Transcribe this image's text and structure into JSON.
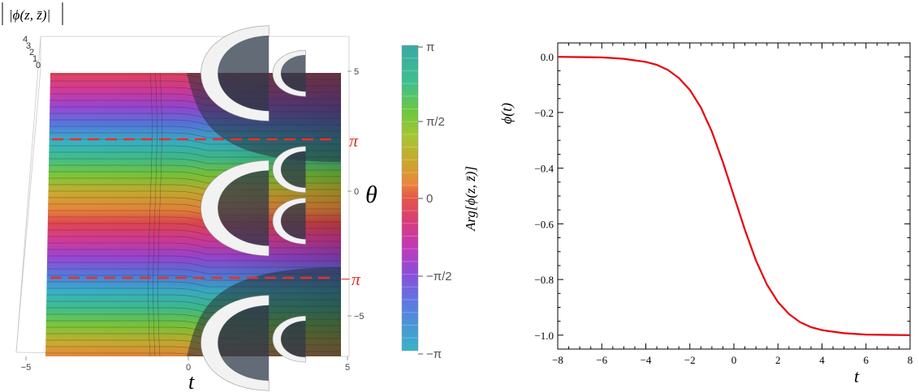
{
  "chart_data": [
    {
      "type": "surface3d",
      "z_label": "|ϕ(z, z̄)|",
      "z_ticks": [
        "4",
        "3",
        "2",
        "1",
        "0"
      ],
      "x_label": "t",
      "x_ticks": [
        "−5",
        "0",
        "5"
      ],
      "x_range": [
        -5,
        5
      ],
      "y_label": "θ",
      "y_ticks": [
        "5",
        "0",
        "−5"
      ],
      "y_range": [
        -7,
        7
      ],
      "reference_lines": [
        {
          "theta": 3.14159,
          "label": "π",
          "color": "#e8302a"
        },
        {
          "theta": -3.14159,
          "label": "−π",
          "color": "#e8302a"
        }
      ],
      "poles": [
        {
          "t": 0,
          "theta": 6.28
        },
        {
          "t": 0,
          "theta": 0
        },
        {
          "t": 0,
          "theta": -6.28
        },
        {
          "t": 2.5,
          "theta": 6.28
        },
        {
          "t": 2.5,
          "theta": 1.8
        },
        {
          "t": 2.5,
          "theta": -0.6
        },
        {
          "t": 2.5,
          "theta": -6.1
        }
      ],
      "colorbar": {
        "label": "Arg[ϕ(z, z̄)]",
        "ticks": [
          "π",
          "π/2",
          "0",
          "−π/2",
          "−π"
        ],
        "range": [
          -3.14159,
          3.14159
        ]
      }
    },
    {
      "type": "line",
      "xlabel": "t",
      "ylabel": "ϕ(t)",
      "xlim": [
        -8,
        8
      ],
      "ylim": [
        -1.05,
        0.05
      ],
      "x_ticks": [
        "−8",
        "−6",
        "−4",
        "−2",
        "0",
        "2",
        "4",
        "6",
        "8"
      ],
      "x_tick_values": [
        -8,
        -6,
        -4,
        -2,
        0,
        2,
        4,
        6,
        8
      ],
      "y_ticks": [
        "0.0",
        "−0.2",
        "−0.4",
        "−0.6",
        "−0.8",
        "−1.0"
      ],
      "y_tick_values": [
        0,
        -0.2,
        -0.4,
        -0.6,
        -0.8,
        -1.0
      ],
      "series": [
        {
          "color": "#e8000b",
          "x": [
            -8,
            -7,
            -6,
            -5,
            -4,
            -3.5,
            -3,
            -2.5,
            -2,
            -1.5,
            -1,
            -0.5,
            0,
            0.5,
            1,
            1.5,
            2,
            2.5,
            3,
            3.5,
            4,
            5,
            6,
            7,
            8
          ],
          "y": [
            0,
            -0.001,
            -0.002,
            -0.007,
            -0.018,
            -0.029,
            -0.047,
            -0.076,
            -0.119,
            -0.182,
            -0.269,
            -0.378,
            -0.5,
            -0.622,
            -0.731,
            -0.818,
            -0.881,
            -0.924,
            -0.953,
            -0.971,
            -0.982,
            -0.993,
            -0.998,
            -0.999,
            -1.0
          ]
        }
      ]
    }
  ]
}
